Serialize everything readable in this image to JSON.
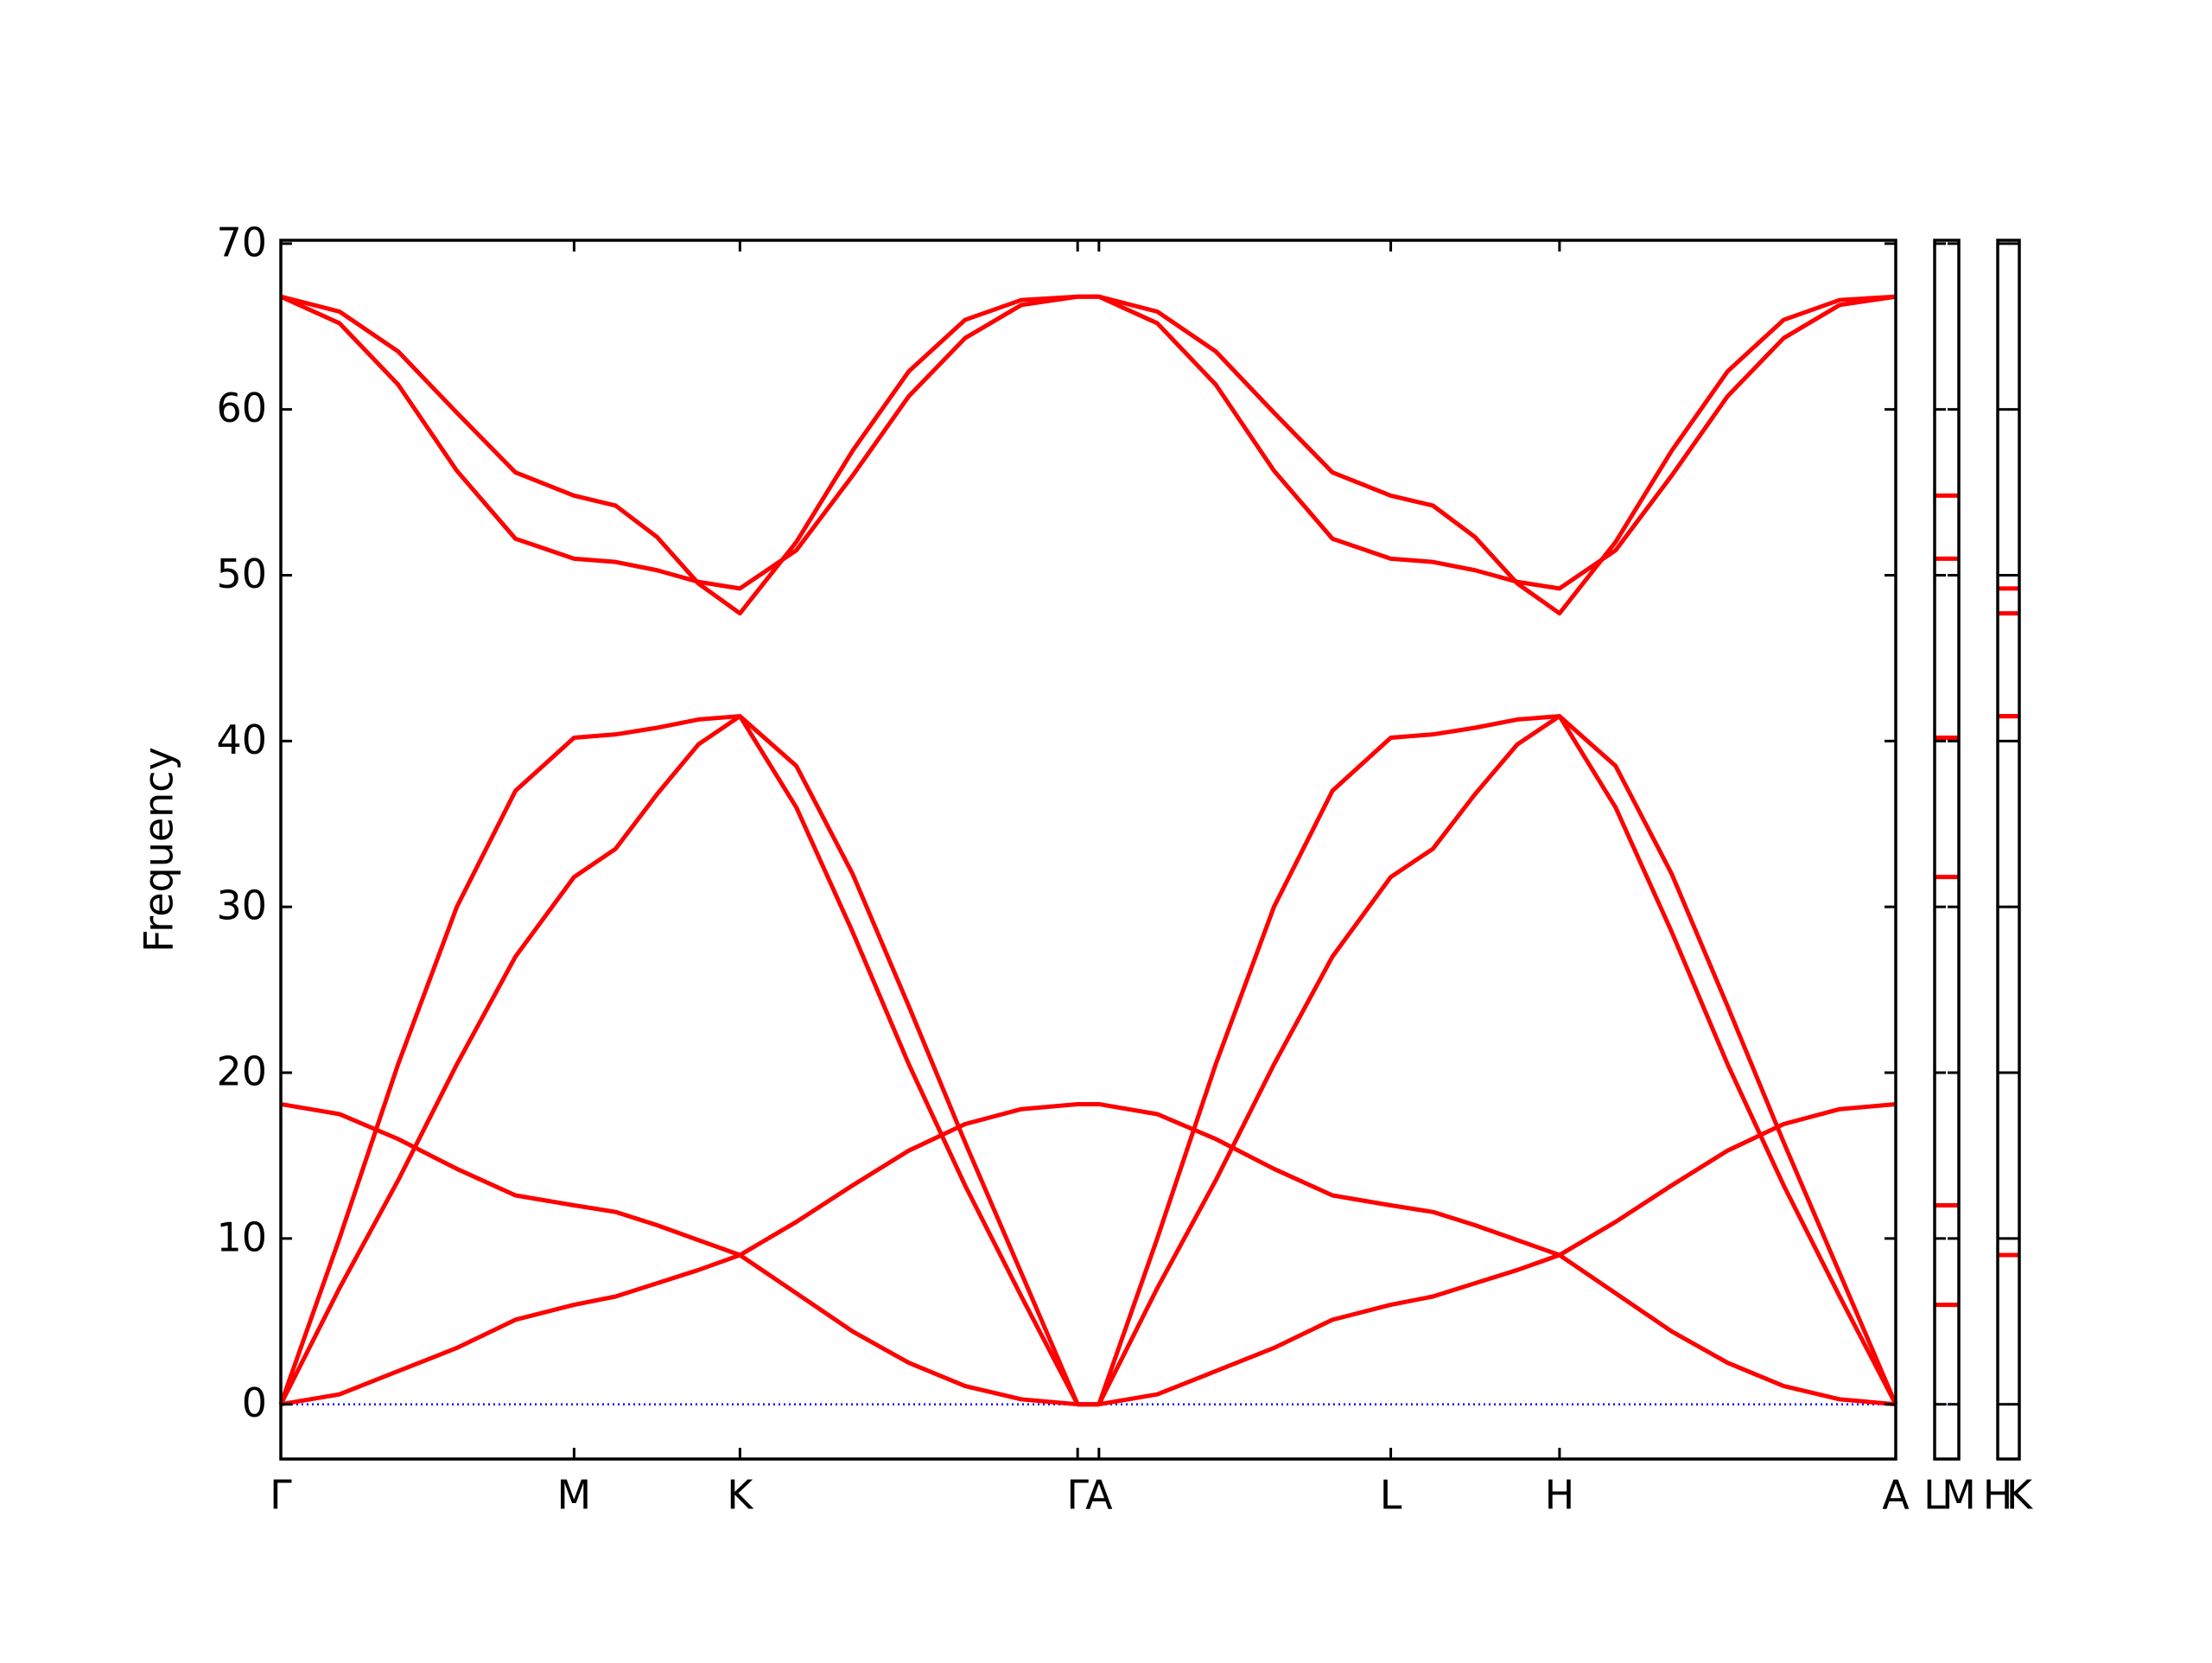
{
  "chart_data": [
    {
      "type": "line",
      "ylabel": "Frequency",
      "x": [
        0,
        0.0363,
        0.0726,
        0.109,
        0.1453,
        0.1816,
        0.2073,
        0.233,
        0.2586,
        0.2843,
        0.3192,
        0.354,
        0.3889,
        0.4237,
        0.4586,
        0.4934,
        0.5066,
        0.5427,
        0.5789,
        0.615,
        0.6512,
        0.6873,
        0.7134,
        0.7395,
        0.7657,
        0.7918,
        0.8265,
        0.8612,
        0.8959,
        0.9306,
        0.9653,
        1
      ],
      "xlim": [
        0,
        1
      ],
      "xticks": [
        {
          "value": 0,
          "label": "Γ"
        },
        {
          "value": 0.1816,
          "label": "M"
        },
        {
          "value": 0.2843,
          "label": "K"
        },
        {
          "value": 0.4934,
          "label": "Γ"
        },
        {
          "value": 0.5066,
          "label": "A"
        },
        {
          "value": 0.6873,
          "label": "L"
        },
        {
          "value": 0.7918,
          "label": "H"
        },
        {
          "value": 1,
          "label": "A"
        }
      ],
      "ylim": [
        -3.3,
        70.2
      ],
      "yticks": [
        0,
        10,
        20,
        30,
        40,
        50,
        60,
        70
      ],
      "show_ytick_labels": true,
      "zero_line": {
        "value": 0,
        "color": "#0000ff"
      },
      "series": [
        {
          "color": "#ff0000",
          "values": [
            0,
            0.6,
            2.0,
            3.4,
            5.1,
            6.0,
            6.5,
            7.3,
            8.1,
            9.0,
            11.0,
            13.2,
            15.3,
            16.9,
            17.8,
            18.1,
            18.1,
            17.5,
            16.0,
            14.2,
            12.6,
            12.0,
            11.6,
            10.8,
            9.9,
            9.0,
            6.7,
            4.4,
            2.5,
            1.1,
            0.3,
            0
          ]
        },
        {
          "color": "#ff0000",
          "values": [
            18.1,
            17.5,
            16.0,
            14.2,
            12.6,
            12.0,
            11.6,
            10.8,
            9.9,
            9.0,
            6.7,
            4.4,
            2.5,
            1.1,
            0.3,
            0,
            0,
            0.6,
            2.0,
            3.4,
            5.1,
            6.0,
            6.5,
            7.3,
            8.1,
            9.0,
            11.0,
            13.2,
            15.3,
            16.9,
            17.8,
            18.1
          ]
        },
        {
          "color": "#ff0000",
          "values": [
            0,
            7.0,
            13.5,
            20.5,
            27.0,
            31.8,
            33.5,
            36.8,
            39.8,
            41.5,
            36.0,
            28.5,
            20.5,
            13.2,
            6.5,
            0,
            0,
            7.0,
            13.5,
            20.5,
            27.0,
            31.8,
            33.5,
            36.8,
            39.8,
            41.5,
            36.0,
            28.5,
            20.5,
            13.2,
            6.5,
            0
          ]
        },
        {
          "color": "#ff0000",
          "values": [
            0,
            10.0,
            20.5,
            30.0,
            37.0,
            40.2,
            40.4,
            40.8,
            41.3,
            41.5,
            38.5,
            32.0,
            24.0,
            15.8,
            7.9,
            0,
            0,
            10.0,
            20.5,
            30.0,
            37.0,
            40.2,
            40.4,
            40.8,
            41.3,
            41.5,
            38.5,
            32.0,
            24.0,
            15.8,
            7.9,
            0
          ]
        },
        {
          "color": "#ff0000",
          "values": [
            66.8,
            65.2,
            61.5,
            56.3,
            52.2,
            51.0,
            50.8,
            50.3,
            49.6,
            49.2,
            51.5,
            56.0,
            60.8,
            64.3,
            66.3,
            66.8,
            66.8,
            65.2,
            61.5,
            56.3,
            52.2,
            51.0,
            50.8,
            50.3,
            49.6,
            49.2,
            51.5,
            56.0,
            60.8,
            64.3,
            66.3,
            66.8
          ]
        },
        {
          "color": "#ff0000",
          "values": [
            66.8,
            65.9,
            63.5,
            59.8,
            56.2,
            54.8,
            54.2,
            52.3,
            49.5,
            47.7,
            52.0,
            57.5,
            62.3,
            65.4,
            66.6,
            66.8,
            66.8,
            65.9,
            63.5,
            59.8,
            56.2,
            54.8,
            54.2,
            52.3,
            49.5,
            47.7,
            52.0,
            57.5,
            62.3,
            65.4,
            66.6,
            66.8
          ]
        }
      ]
    },
    {
      "type": "line",
      "x": [
        0,
        1
      ],
      "xlim": [
        0,
        1
      ],
      "xticks": [
        {
          "value": 0,
          "label": "L"
        },
        {
          "value": 1,
          "label": "M"
        }
      ],
      "ylim": [
        -3.3,
        70.2
      ],
      "yticks": [
        0,
        10,
        20,
        30,
        40,
        50,
        60,
        70
      ],
      "show_ytick_labels": false,
      "zero_line": {
        "value": 0,
        "color": "#0000ff"
      },
      "series": [
        {
          "color": "#ff0000",
          "values": [
            6.0,
            6.0
          ]
        },
        {
          "color": "#ff0000",
          "values": [
            12.0,
            12.0
          ]
        },
        {
          "color": "#ff0000",
          "values": [
            31.8,
            31.8
          ]
        },
        {
          "color": "#ff0000",
          "values": [
            40.2,
            40.2
          ]
        },
        {
          "color": "#ff0000",
          "values": [
            51.0,
            51.0
          ]
        },
        {
          "color": "#ff0000",
          "values": [
            54.8,
            54.8
          ]
        }
      ]
    },
    {
      "type": "line",
      "x": [
        0,
        1
      ],
      "xlim": [
        0,
        1
      ],
      "xticks": [
        {
          "value": 0,
          "label": "H"
        },
        {
          "value": 1,
          "label": "K"
        }
      ],
      "ylim": [
        -3.3,
        70.2
      ],
      "yticks": [
        0,
        10,
        20,
        30,
        40,
        50,
        60,
        70
      ],
      "show_ytick_labels": false,
      "zero_line": {
        "value": 0,
        "color": "#0000ff"
      },
      "series": [
        {
          "color": "#ff0000",
          "values": [
            9.0,
            9.0
          ]
        },
        {
          "color": "#ff0000",
          "values": [
            9.0,
            9.0
          ]
        },
        {
          "color": "#ff0000",
          "values": [
            41.5,
            41.5
          ]
        },
        {
          "color": "#ff0000",
          "values": [
            41.5,
            41.5
          ]
        },
        {
          "color": "#ff0000",
          "values": [
            47.7,
            47.7
          ]
        },
        {
          "color": "#ff0000",
          "values": [
            49.2,
            49.2
          ]
        }
      ]
    }
  ]
}
